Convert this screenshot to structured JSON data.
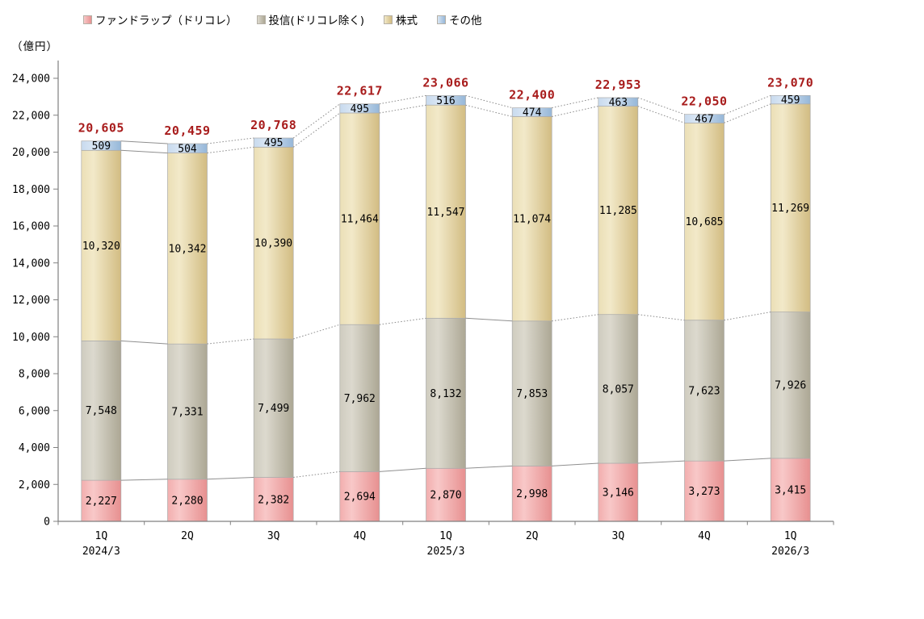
{
  "chart_data": {
    "type": "bar",
    "stacked": true,
    "title": "",
    "ylabel": "（億円）",
    "xlabel": "",
    "ylim": [
      0,
      24000
    ],
    "yticks": [
      0,
      2000,
      4000,
      6000,
      8000,
      10000,
      12000,
      14000,
      16000,
      18000,
      20000,
      22000,
      24000
    ],
    "grid": false,
    "legend_position": "top",
    "categories": [
      "1Q",
      "2Q",
      "3Q",
      "4Q",
      "1Q",
      "2Q",
      "3Q",
      "4Q",
      "1Q"
    ],
    "category_years": [
      "2024/3",
      "",
      "",
      "",
      "2025/3",
      "",
      "",
      "",
      "2026/3"
    ],
    "series": [
      {
        "name": "ファンドラップ（ドリコレ）",
        "color": "#F2AEAE",
        "color_light": "#F8C8C8",
        "color_dark": "#E79090",
        "values": [
          2227,
          2280,
          2382,
          2694,
          2870,
          2998,
          3146,
          3273,
          3415
        ]
      },
      {
        "name": "投信(ドリコレ除く)",
        "color": "#CFCCBF",
        "color_light": "#DCD9CE",
        "color_dark": "#ACA794",
        "values": [
          7548,
          7331,
          7499,
          7962,
          8132,
          7853,
          8057,
          7623,
          7926
        ]
      },
      {
        "name": "株式",
        "color": "#EBDFB6",
        "color_light": "#F2E9C9",
        "color_dark": "#D2BC82",
        "values": [
          10320,
          10342,
          10390,
          11464,
          11547,
          11074,
          11285,
          10685,
          11269
        ]
      },
      {
        "name": "その他",
        "color": "#C8DAEE",
        "color_light": "#D9E6F4",
        "color_dark": "#96B7D8",
        "values": [
          509,
          504,
          495,
          495,
          516,
          474,
          463,
          467,
          459
        ]
      }
    ],
    "totals": [
      20605,
      20459,
      20768,
      22617,
      23066,
      22400,
      22953,
      22050,
      23070
    ],
    "totals_color": "#A81C1C",
    "axis_color": "#808080",
    "connector_color": "#8F8F8F"
  }
}
